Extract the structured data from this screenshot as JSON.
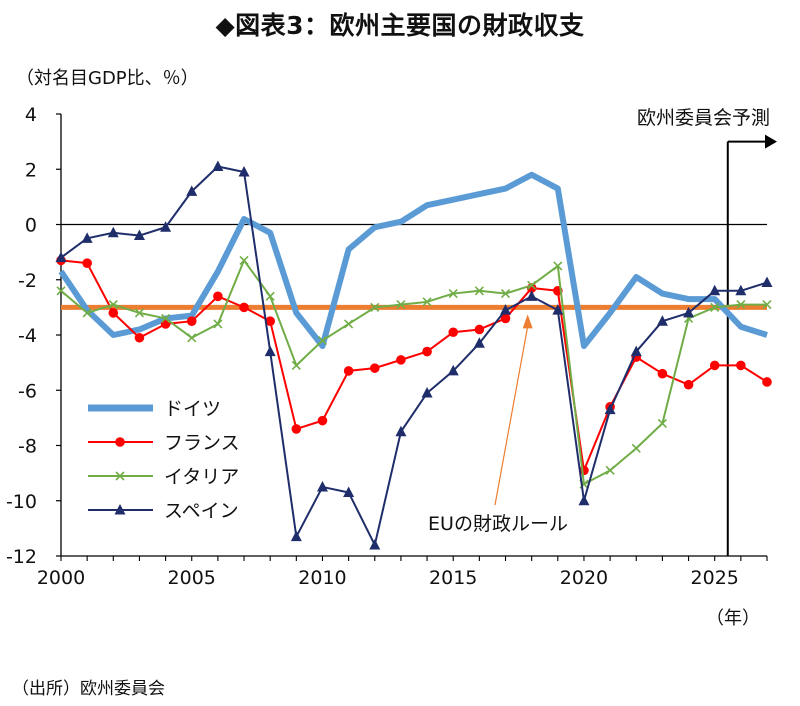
{
  "title": "◆図表3：欧州主要国の財政収支",
  "unit_label": "（対名目GDP比、％）",
  "source": "（出所）欧州委員会",
  "chart_data": {
    "type": "line",
    "xlabel": "（年）",
    "ylabel": "（対名目GDP比、％）",
    "xlim": [
      2000,
      2027
    ],
    "ylim": [
      -12,
      4
    ],
    "x_ticks": [
      2000,
      2005,
      2010,
      2015,
      2020,
      2025
    ],
    "y_ticks": [
      4,
      2,
      0,
      -2,
      -4,
      -6,
      -8,
      -10,
      -12
    ],
    "legend_position": "lower-left",
    "zero_line": true,
    "forecast_start": 2025.5,
    "forecast_label": "欧州委員会予測",
    "reference_line": {
      "name": "EUの財政ルール",
      "value": -3,
      "color": "#ed7d31"
    },
    "annotation": {
      "text": "EUの財政ルール",
      "points_to_x": 2018
    },
    "series": [
      {
        "name": "ドイツ",
        "color": "#5b9bd5",
        "marker": "none",
        "x": [
          2000,
          2001,
          2002,
          2003,
          2004,
          2005,
          2006,
          2007,
          2008,
          2009,
          2010,
          2011,
          2012,
          2013,
          2014,
          2015,
          2016,
          2017,
          2018,
          2019,
          2020,
          2021,
          2022,
          2023,
          2024,
          2025,
          2026,
          2027
        ],
        "values": [
          -1.7,
          -3.1,
          -4.0,
          -3.8,
          -3.4,
          -3.3,
          -1.7,
          0.2,
          -0.3,
          -3.2,
          -4.4,
          -0.9,
          -0.1,
          0.1,
          0.7,
          0.9,
          1.1,
          1.3,
          1.8,
          1.3,
          -4.4,
          -3.2,
          -1.9,
          -2.5,
          -2.7,
          -2.7,
          -3.7,
          -4.0
        ]
      },
      {
        "name": "フランス",
        "color": "#ff0000",
        "marker": "circle",
        "x": [
          2000,
          2001,
          2002,
          2003,
          2004,
          2005,
          2006,
          2007,
          2008,
          2009,
          2010,
          2011,
          2012,
          2013,
          2014,
          2015,
          2016,
          2017,
          2018,
          2019,
          2020,
          2021,
          2022,
          2023,
          2024,
          2025,
          2026,
          2027
        ],
        "values": [
          -1.3,
          -1.4,
          -3.2,
          -4.1,
          -3.6,
          -3.5,
          -2.6,
          -3.0,
          -3.5,
          -7.4,
          -7.1,
          -5.3,
          -5.2,
          -4.9,
          -4.6,
          -3.9,
          -3.8,
          -3.4,
          -2.3,
          -2.4,
          -8.9,
          -6.6,
          -4.8,
          -5.4,
          -5.8,
          -5.1,
          -5.1,
          -5.7
        ]
      },
      {
        "name": "イタリア",
        "color": "#70ad47",
        "marker": "cross",
        "x": [
          2000,
          2001,
          2002,
          2003,
          2004,
          2005,
          2006,
          2007,
          2008,
          2009,
          2010,
          2011,
          2012,
          2013,
          2014,
          2015,
          2016,
          2017,
          2018,
          2019,
          2020,
          2021,
          2022,
          2023,
          2024,
          2025,
          2026,
          2027
        ],
        "values": [
          -2.4,
          -3.2,
          -2.9,
          -3.2,
          -3.4,
          -4.1,
          -3.6,
          -1.3,
          -2.6,
          -5.1,
          -4.2,
          -3.6,
          -3.0,
          -2.9,
          -2.8,
          -2.5,
          -2.4,
          -2.5,
          -2.2,
          -1.5,
          -9.4,
          -8.9,
          -8.1,
          -7.2,
          -3.4,
          -3.0,
          -2.9,
          -2.9
        ]
      },
      {
        "name": "スペイン",
        "color": "#1f2e6b",
        "marker": "triangle",
        "x": [
          2000,
          2001,
          2002,
          2003,
          2004,
          2005,
          2006,
          2007,
          2008,
          2009,
          2010,
          2011,
          2012,
          2013,
          2014,
          2015,
          2016,
          2017,
          2018,
          2019,
          2020,
          2021,
          2022,
          2023,
          2024,
          2025,
          2026,
          2027
        ],
        "values": [
          -1.2,
          -0.5,
          -0.3,
          -0.4,
          -0.1,
          1.2,
          2.1,
          1.9,
          -4.6,
          -11.3,
          -9.5,
          -9.7,
          -11.6,
          -7.5,
          -6.1,
          -5.3,
          -4.3,
          -3.1,
          -2.6,
          -3.1,
          -10.0,
          -6.7,
          -4.6,
          -3.5,
          -3.2,
          -2.4,
          -2.4,
          -2.1
        ]
      }
    ]
  }
}
